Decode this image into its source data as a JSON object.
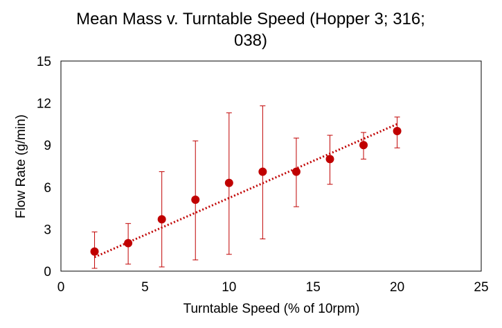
{
  "chart_data": {
    "type": "scatter",
    "title_lines": [
      "Mean Mass v. Turntable Speed (Hopper 3; 316;",
      "038)"
    ],
    "xlabel": "Turntable  Speed (% of 10rpm)",
    "ylabel": "Flow Rate (g/min)",
    "xlim": [
      0,
      25
    ],
    "ylim": [
      0,
      15
    ],
    "xticks": [
      0,
      5,
      10,
      15,
      20,
      25
    ],
    "yticks": [
      0,
      3,
      6,
      9,
      12,
      15
    ],
    "grid": false,
    "legend": "none",
    "series": [
      {
        "points": [
          {
            "x": 2,
            "y": 1.4,
            "err_low": 0.2,
            "err_high": 2.8
          },
          {
            "x": 4,
            "y": 2.0,
            "err_low": 0.5,
            "err_high": 3.4
          },
          {
            "x": 6,
            "y": 3.7,
            "err_low": 0.3,
            "err_high": 7.1
          },
          {
            "x": 8,
            "y": 5.1,
            "err_low": 0.8,
            "err_high": 9.3
          },
          {
            "x": 10,
            "y": 6.3,
            "err_low": 1.2,
            "err_high": 11.3
          },
          {
            "x": 12,
            "y": 7.1,
            "err_low": 2.3,
            "err_high": 11.8
          },
          {
            "x": 14,
            "y": 7.1,
            "err_low": 4.6,
            "err_high": 9.5
          },
          {
            "x": 16,
            "y": 8.0,
            "err_low": 6.2,
            "err_high": 9.7
          },
          {
            "x": 18,
            "y": 9.0,
            "err_low": 8.0,
            "err_high": 9.9
          },
          {
            "x": 20,
            "y": 10.0,
            "err_low": 8.8,
            "err_high": 11.0
          }
        ]
      }
    ],
    "trendline": {
      "type": "linear",
      "x": [
        2,
        20
      ],
      "y": [
        1.0,
        10.5
      ],
      "style": "dotted"
    },
    "colors": {
      "series": "#C00000",
      "axis": "#000000",
      "frame": "#000000"
    }
  }
}
